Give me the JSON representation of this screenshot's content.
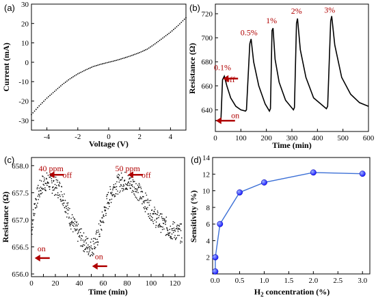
{
  "chart_data": [
    {
      "panel_label": "(a)",
      "type": "scatter",
      "xlabel": "Voltage (V)",
      "ylabel": "Current (mA)",
      "xlim": [
        -5,
        5
      ],
      "ylim": [
        -35,
        30
      ],
      "xticks": [
        -4,
        -2,
        0,
        2,
        4
      ],
      "yticks": [
        -30,
        -20,
        -10,
        0,
        10,
        20,
        30
      ],
      "series": [
        {
          "points": [
            [
              -5,
              -27
            ],
            [
              -4.5,
              -22.5
            ],
            [
              -4,
              -18.5
            ],
            [
              -3.5,
              -15
            ],
            [
              -3,
              -11.5
            ],
            [
              -2.5,
              -8.5
            ],
            [
              -2,
              -6
            ],
            [
              -1.5,
              -4
            ],
            [
              -1,
              -2.2
            ],
            [
              -0.5,
              -1
            ],
            [
              0,
              0
            ],
            [
              0.5,
              1
            ],
            [
              1,
              2.2
            ],
            [
              1.5,
              3.5
            ],
            [
              2,
              5
            ],
            [
              2.5,
              6.8
            ],
            [
              3,
              9.5
            ],
            [
              3.5,
              12.5
            ],
            [
              4,
              15.5
            ],
            [
              4.5,
              19
            ],
            [
              5,
              23
            ]
          ]
        }
      ]
    },
    {
      "panel_label": "(b)",
      "type": "line",
      "xlabel": "Time (min)",
      "ylabel": "Resistance (Ω)",
      "xlim": [
        0,
        600
      ],
      "ylim": [
        622,
        728
      ],
      "xticks": [
        0,
        100,
        200,
        300,
        400,
        500,
        600
      ],
      "yticks": [
        640,
        660,
        680,
        700,
        720
      ],
      "series": [
        {
          "points": [
            [
              0,
              631
            ],
            [
              8,
              631
            ],
            [
              15,
              632
            ],
            [
              22,
              632
            ],
            [
              28,
              665
            ],
            [
              35,
              668
            ],
            [
              45,
              660
            ],
            [
              60,
              650
            ],
            [
              80,
              643
            ],
            [
              100,
              640
            ],
            [
              118,
              639
            ],
            [
              122,
              640
            ],
            [
              135,
              695
            ],
            [
              140,
              699
            ],
            [
              150,
              680
            ],
            [
              170,
              660
            ],
            [
              195,
              645
            ],
            [
              212,
              639
            ],
            [
              216,
              641
            ],
            [
              222,
              706
            ],
            [
              226,
              708
            ],
            [
              234,
              682
            ],
            [
              250,
              663
            ],
            [
              275,
              648
            ],
            [
              306,
              640
            ],
            [
              310,
              642
            ],
            [
              318,
              712
            ],
            [
              322,
              716
            ],
            [
              333,
              690
            ],
            [
              355,
              667
            ],
            [
              385,
              650
            ],
            [
              435,
              641
            ],
            [
              440,
              643
            ],
            [
              452,
              714
            ],
            [
              456,
              718
            ],
            [
              468,
              694
            ],
            [
              495,
              667
            ],
            [
              530,
              653
            ],
            [
              565,
              646
            ],
            [
              600,
              643
            ]
          ]
        }
      ],
      "annotations": [
        {
          "text": "0.1%",
          "x": 28,
          "y": 673
        },
        {
          "text": "off",
          "x": 40,
          "y": 663
        },
        {
          "text": "0.5%",
          "x": 132,
          "y": 702
        },
        {
          "text": "1%",
          "x": 220,
          "y": 712
        },
        {
          "text": "2%",
          "x": 318,
          "y": 720
        },
        {
          "text": "3%",
          "x": 448,
          "y": 721
        },
        {
          "text": "on",
          "x": 62,
          "y": 633
        }
      ]
    },
    {
      "panel_label": "(c)",
      "type": "scatter",
      "xlabel": "Time (min)",
      "ylabel": "Resistance (Ω)",
      "xlim": [
        0,
        128
      ],
      "ylim": [
        655.95,
        658.15
      ],
      "xticks": [
        0,
        10,
        20,
        30,
        40,
        50,
        60,
        70,
        80,
        90,
        100,
        110,
        120
      ],
      "yticks": [
        656.0,
        656.5,
        657.0,
        657.5,
        658.0
      ],
      "series": [
        {
          "points": [
            [
              0,
              656.8
            ],
            [
              3,
              657.3
            ],
            [
              6,
              657.5
            ],
            [
              9,
              657.65
            ],
            [
              12,
              657.7
            ],
            [
              15,
              657.7
            ],
            [
              18,
              657.65
            ],
            [
              21,
              657.6
            ],
            [
              24,
              657.55
            ],
            [
              27,
              657.4
            ],
            [
              30,
              657.2
            ],
            [
              33,
              657.0
            ],
            [
              36,
              656.85
            ],
            [
              39,
              656.75
            ],
            [
              42,
              656.65
            ],
            [
              45,
              656.55
            ],
            [
              48,
              656.5
            ],
            [
              51,
              656.5
            ],
            [
              54,
              656.6
            ],
            [
              57,
              656.8
            ],
            [
              60,
              657.05
            ],
            [
              63,
              657.3
            ],
            [
              66,
              657.45
            ],
            [
              69,
              657.6
            ],
            [
              72,
              657.65
            ],
            [
              75,
              657.7
            ],
            [
              78,
              657.72
            ],
            [
              81,
              657.7
            ],
            [
              84,
              657.65
            ],
            [
              87,
              657.6
            ],
            [
              90,
              657.5
            ],
            [
              93,
              657.4
            ],
            [
              96,
              657.3
            ],
            [
              99,
              657.2
            ],
            [
              102,
              657.1
            ],
            [
              105,
              657.0
            ],
            [
              108,
              656.95
            ],
            [
              111,
              656.9
            ],
            [
              114,
              656.85
            ],
            [
              117,
              656.8
            ],
            [
              120,
              656.8
            ],
            [
              123,
              656.75
            ],
            [
              126,
              656.75
            ]
          ]
        }
      ],
      "annotations": [
        {
          "text": "40 ppm",
          "x": 6,
          "y": 657.9
        },
        {
          "text": "off",
          "x": 26,
          "y": 657.78
        },
        {
          "text": "50 ppm",
          "x": 70,
          "y": 657.9
        },
        {
          "text": "off",
          "x": 92,
          "y": 657.78
        },
        {
          "text": "on",
          "x": 5,
          "y": 656.42
        },
        {
          "text": "on",
          "x": 53,
          "y": 656.27
        }
      ]
    },
    {
      "panel_label": "(d)",
      "type": "line",
      "xlabel": "H2 concentration (%)",
      "ylabel": "Sensitivity (%)",
      "xlim": [
        -0.05,
        3.15
      ],
      "ylim": [
        0,
        14
      ],
      "xticks": [
        0.0,
        0.5,
        1.0,
        1.5,
        2.0,
        2.5,
        3.0
      ],
      "yticks": [
        2,
        4,
        6,
        8,
        10,
        12,
        14
      ],
      "series": [
        {
          "points": [
            [
              0.004,
              0.3
            ],
            [
              0.005,
              2.0
            ],
            [
              0.1,
              6.0
            ],
            [
              0.5,
              9.8
            ],
            [
              1.0,
              11.0
            ],
            [
              2.0,
              12.2
            ],
            [
              3.0,
              12.05
            ]
          ]
        }
      ]
    }
  ],
  "labels": {
    "a_panel": "(a)",
    "a_xlabel": "Voltage (V)",
    "a_ylabel": "Current (mA)",
    "b_panel": "(b)",
    "b_xlabel": "Time (min)",
    "b_ylabel": "Resistance (Ω)",
    "c_panel": "(c)",
    "c_xlabel": "Time (min)",
    "c_ylabel": "Resistance (Ω)",
    "d_panel": "(d)",
    "d_xlabel_main": "H",
    "d_xlabel_sub": "2",
    "d_xlabel_rest": " concentration (%)",
    "d_ylabel": "Sensitivity (%)"
  },
  "colors": {
    "red_annotation": "#b00000",
    "marker_blue": "#1a1aff",
    "line_blue": "#3b6fd6"
  }
}
